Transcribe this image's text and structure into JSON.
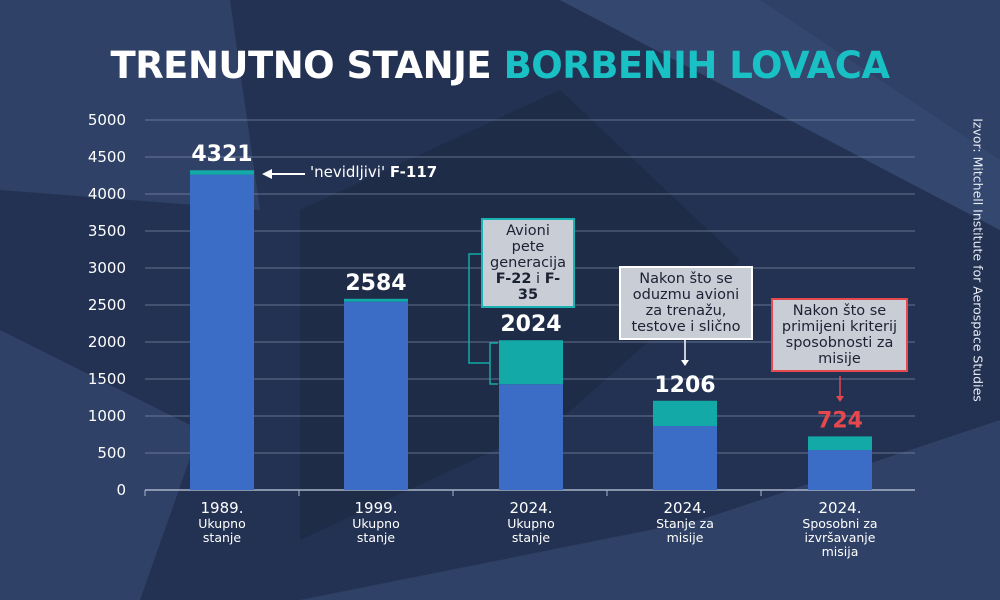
{
  "title": {
    "part1": "TRENUTNO STANJE",
    "part2": "BORBENIH LOVACA"
  },
  "source": "Izvor: Mitchell Institute for Aerospace Studies",
  "annotations": {
    "f117": {
      "pre": "'nevidljivi' ",
      "bold": "F-117"
    },
    "gen5": {
      "l1": "Avioni",
      "l2": "pete",
      "l3": "generacija",
      "b1": "F-22",
      "mid": " i ",
      "b2": "F-35"
    },
    "training": "Nakon što se oduzmu avioni za trenažu, testove i slično",
    "mission": "Nakon što se primijeni kriterij sposobnosti za misije"
  },
  "colors": {
    "blue": "#3b6cc6",
    "teal": "#12a9a6",
    "red": "#e5484d",
    "grid": "#7f8dab"
  },
  "chart_data": {
    "type": "bar",
    "stacked": true,
    "title": "TRENUTNO STANJE BORBENIH LOVACA",
    "categories": [
      {
        "year": "1989.",
        "l1": "Ukupno",
        "l2": "stanje"
      },
      {
        "year": "1999.",
        "l1": "Ukupno",
        "l2": "stanje"
      },
      {
        "year": "2024.",
        "l1": "Ukupno",
        "l2": "stanje"
      },
      {
        "year": "2024.",
        "l1": "Stanje za",
        "l2": "misije"
      },
      {
        "year": "2024.",
        "l1": "Sposobni za",
        "l2": "izvršavanje",
        "l3": "misija"
      }
    ],
    "totals": [
      "4321",
      "2584",
      "2024",
      "1206",
      "724"
    ],
    "series": [
      {
        "name": "base",
        "values": [
          4261,
          2544,
          1430,
          865,
          540
        ]
      },
      {
        "name": "highlight",
        "values": [
          60,
          40,
          594,
          341,
          184
        ]
      }
    ],
    "yticks": [
      "0",
      "500",
      "1000",
      "1500",
      "2000",
      "2500",
      "3000",
      "3500",
      "4000",
      "4500",
      "5000"
    ],
    "ylim": [
      0,
      5000
    ],
    "grid": true
  }
}
